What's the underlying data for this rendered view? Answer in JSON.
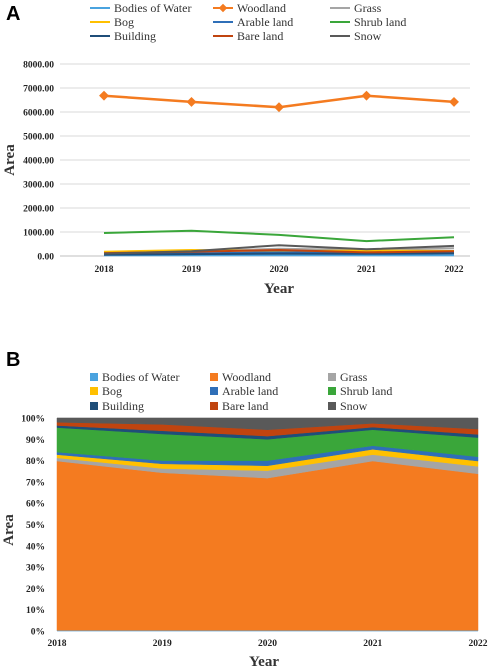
{
  "colors": {
    "Bodies of Water": "#4aa3df",
    "Woodland": "#f47b20",
    "Grass": "#a5a5a5",
    "Bog": "#ffc000",
    "Arable land": "#2f6fb8",
    "Shrub land": "#3aa63a",
    "Building": "#1f4e79",
    "Bare land": "#c0440f",
    "Snow": "#595959",
    "grid": "#d9d9d9",
    "axis": "#bfbfbf"
  },
  "chart_data": [
    {
      "panel": "A",
      "type": "line",
      "x": [
        "2018",
        "2019",
        "2020",
        "2021",
        "2022"
      ],
      "ylim": [
        0,
        8000
      ],
      "yticks": [
        "0.00",
        "1000.00",
        "2000.00",
        "3000.00",
        "4000.00",
        "5000.00",
        "6000.00",
        "7000.00",
        "8000.00"
      ],
      "xlabel": "Year",
      "ylabel": "Area",
      "grid": true,
      "legend_position": "top",
      "legend": [
        "Bodies of Water",
        "Woodland",
        "Grass",
        "Bog",
        "Arable land",
        "Shrub land",
        "Building",
        "Bare land",
        "Snow"
      ],
      "series": [
        {
          "name": "Bodies of Water",
          "values": [
            30,
            30,
            30,
            30,
            30
          ]
        },
        {
          "name": "Woodland",
          "values": [
            6680,
            6420,
            6200,
            6680,
            6420
          ]
        },
        {
          "name": "Grass",
          "values": [
            150,
            200,
            300,
            250,
            320
          ]
        },
        {
          "name": "Bog",
          "values": [
            180,
            250,
            200,
            230,
            210
          ]
        },
        {
          "name": "Arable land",
          "values": [
            80,
            110,
            150,
            120,
            130
          ]
        },
        {
          "name": "Shrub land",
          "values": [
            960,
            1050,
            880,
            620,
            780
          ]
        },
        {
          "name": "Building",
          "values": [
            60,
            80,
            100,
            90,
            110
          ]
        },
        {
          "name": "Bare land",
          "values": [
            120,
            180,
            250,
            150,
            200
          ]
        },
        {
          "name": "Snow",
          "values": [
            100,
            200,
            450,
            280,
            420
          ]
        }
      ]
    },
    {
      "panel": "B",
      "type": "area",
      "stacked": "percent",
      "x": [
        "2018",
        "2019",
        "2020",
        "2021",
        "2022"
      ],
      "ylim": [
        0,
        100
      ],
      "yticks": [
        "0%",
        "10%",
        "20%",
        "30%",
        "40%",
        "50%",
        "60%",
        "70%",
        "80%",
        "90%",
        "100%"
      ],
      "xlabel": "Year",
      "ylabel": "Area",
      "grid": true,
      "legend_position": "top",
      "legend": [
        "Bodies of Water",
        "Woodland",
        "Grass",
        "Bog",
        "Arable land",
        "Shrub land",
        "Building",
        "Bare land",
        "Snow"
      ],
      "series": [
        {
          "name": "Bodies of Water",
          "values": [
            0.3,
            0.3,
            0.3,
            0.3,
            0.3
          ]
        },
        {
          "name": "Woodland",
          "values": [
            79.5,
            74.0,
            71.5,
            79.5,
            73.5
          ]
        },
        {
          "name": "Grass",
          "values": [
            1.5,
            2.0,
            3.5,
            3.0,
            3.5
          ]
        },
        {
          "name": "Bog",
          "values": [
            1.5,
            2.2,
            2.3,
            2.5,
            2.5
          ]
        },
        {
          "name": "Arable land",
          "values": [
            1.2,
            1.5,
            2.4,
            1.7,
            2.0
          ]
        },
        {
          "name": "Shrub land",
          "values": [
            11.5,
            12.5,
            10.0,
            7.5,
            9.0
          ]
        },
        {
          "name": "Building",
          "values": [
            1.0,
            1.5,
            1.5,
            1.2,
            1.5
          ]
        },
        {
          "name": "Bare land",
          "values": [
            1.5,
            3.0,
            3.0,
            1.8,
            2.5
          ]
        },
        {
          "name": "Snow",
          "values": [
            2.0,
            3.0,
            5.5,
            2.5,
            5.2
          ]
        }
      ]
    }
  ]
}
